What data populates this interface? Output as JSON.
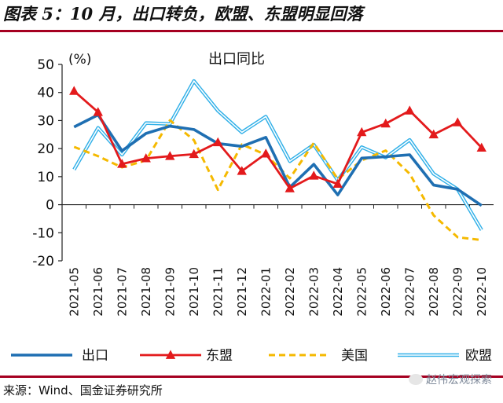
{
  "figure_title": "图表 5：10 月，出口转负，欧盟、东盟明显回落",
  "source": "来源：Wind、国金证券研究所",
  "watermark": "赵伟宏观探索",
  "colors": {
    "accent": "#a50021",
    "export": "#1f6fb2",
    "asean": "#e31a1c",
    "usa": "#f5b900",
    "eu": "#31b0e8"
  },
  "chart_data": {
    "type": "line",
    "title": "出口同比",
    "unit_label": "(%)",
    "xlabel": "",
    "ylabel": "",
    "ylim": [
      -20,
      50
    ],
    "yticks": [
      -20,
      -10,
      0,
      10,
      20,
      30,
      40,
      50
    ],
    "grid": false,
    "legend_position": "bottom",
    "categories": [
      "2021-05",
      "2021-06",
      "2021-07",
      "2021-08",
      "2021-09",
      "2021-10",
      "2021-11",
      "2021-12",
      "2022-01",
      "2022-02",
      "2022-03",
      "2022-04",
      "2022-05",
      "2022-06",
      "2022-07",
      "2022-08",
      "2022-09",
      "2022-10"
    ],
    "series": [
      {
        "name": "出口",
        "style": "solid-thick",
        "values": [
          27.7,
          32.0,
          19.2,
          25.4,
          28.0,
          26.8,
          21.8,
          20.8,
          24.0,
          6.2,
          14.4,
          3.5,
          16.6,
          17.1,
          17.8,
          7.0,
          5.5,
          -0.3
        ]
      },
      {
        "name": "东盟",
        "style": "solid-triangle",
        "values": [
          40.5,
          33.0,
          14.5,
          16.5,
          17.3,
          18.0,
          22.2,
          12.0,
          18.2,
          5.8,
          10.3,
          7.4,
          25.8,
          28.9,
          33.5,
          25.0,
          29.3,
          20.3
        ]
      },
      {
        "name": "美国",
        "style": "dashed",
        "values": [
          20.6,
          17.3,
          13.3,
          15.8,
          30.1,
          23.0,
          5.3,
          21.5,
          17.8,
          9.4,
          22.0,
          9.1,
          15.8,
          19.3,
          11.0,
          -3.8,
          -11.6,
          -12.6
        ]
      },
      {
        "name": "欧盟",
        "style": "double",
        "values": [
          12.5,
          27.4,
          17.8,
          29.1,
          28.8,
          44.1,
          33.5,
          25.8,
          31.4,
          15.5,
          21.4,
          8.7,
          20.5,
          16.8,
          23.1,
          11.0,
          5.5,
          -9.0
        ]
      }
    ]
  }
}
